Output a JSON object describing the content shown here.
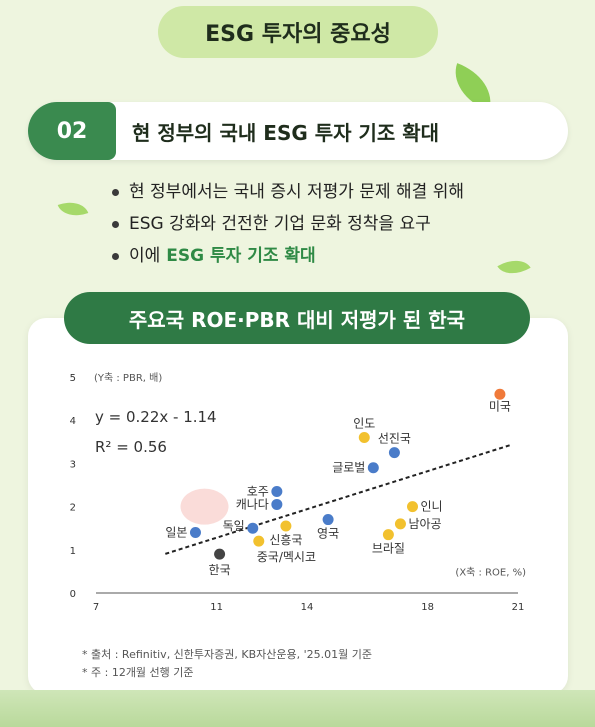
{
  "page_title": "ESG 투자의 중요성",
  "section": {
    "number": "02",
    "title": "현 정부의 국내 ESG 투자 기조 확대"
  },
  "bullets": [
    {
      "text": "현 정부에서는 국내 증시 저평가 문제 해결 위해",
      "highlight": ""
    },
    {
      "text": "ESG 강화와 건전한 기업 문화 정착을 요구",
      "highlight": ""
    },
    {
      "text": "이에",
      "highlight": "ESG 투자 기조 확대"
    }
  ],
  "chart_title": "주요국 ROE·PBR 대비 저평가 된 한국",
  "chart_data": {
    "type": "scatter",
    "ylabel": "(Y축 : PBR, 배)",
    "xlabel": "(X축 : ROE, %)",
    "xlim": [
      7,
      21
    ],
    "ylim": [
      0,
      5
    ],
    "xticks": [
      7,
      11,
      14,
      18,
      21
    ],
    "yticks": [
      0,
      1,
      2,
      3,
      4,
      5
    ],
    "equation": "y = 0.22x - 1.14",
    "r_squared": "R² = 0.56",
    "trendline": {
      "slope": 0.22,
      "intercept": -1.14
    },
    "points": [
      {
        "label": "미국",
        "x": 20.4,
        "y": 4.6,
        "color": "#f07a3a"
      },
      {
        "label": "인도",
        "x": 15.9,
        "y": 3.6,
        "color": "#f2c12e"
      },
      {
        "label": "선진국",
        "x": 16.9,
        "y": 3.25,
        "color": "#4a7cc9"
      },
      {
        "label": "글로벌",
        "x": 16.2,
        "y": 2.9,
        "color": "#4a7cc9"
      },
      {
        "label": "호주",
        "x": 13.0,
        "y": 2.35,
        "color": "#4a7cc9"
      },
      {
        "label": "캐나다",
        "x": 13.0,
        "y": 2.05,
        "color": "#4a7cc9"
      },
      {
        "label": "인니",
        "x": 17.5,
        "y": 2.0,
        "color": "#f2c12e"
      },
      {
        "label": "남아공",
        "x": 17.1,
        "y": 1.6,
        "color": "#f2c12e"
      },
      {
        "label": "영국",
        "x": 14.7,
        "y": 1.7,
        "color": "#4a7cc9"
      },
      {
        "label": "브라질",
        "x": 16.7,
        "y": 1.35,
        "color": "#f2c12e"
      },
      {
        "label": "신흥국",
        "x": 13.3,
        "y": 1.55,
        "color": "#f2c12e"
      },
      {
        "label": "독일",
        "x": 12.2,
        "y": 1.5,
        "color": "#4a7cc9"
      },
      {
        "label": "일본",
        "x": 10.3,
        "y": 1.4,
        "color": "#4a7cc9"
      },
      {
        "label": "중국/멕시코",
        "x": 12.4,
        "y": 1.2,
        "color": "#f2c12e"
      },
      {
        "label": "한국",
        "x": 11.1,
        "y": 0.9,
        "color": "#444444"
      }
    ]
  },
  "footnotes": [
    "* 출처 : Refinitiv, 신한투자증권, KB자산운용, '25.01월 기준",
    "* 주 : 12개월 선행 기준"
  ]
}
